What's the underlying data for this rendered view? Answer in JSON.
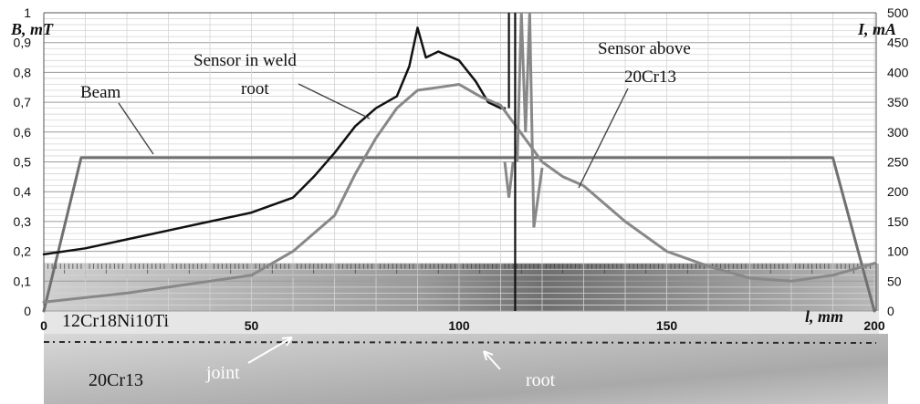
{
  "chart_data": {
    "type": "line",
    "y_left": {
      "label": "B, mT",
      "range": [
        0,
        1
      ],
      "ticks": [
        0,
        0.1,
        0.2,
        0.3,
        0.4,
        0.5,
        0.6,
        0.7,
        0.8,
        0.9,
        1
      ],
      "tick_labels": [
        "0",
        "0,1",
        "0,2",
        "0,3",
        "0,4",
        "0,5",
        "0,6",
        "0,7",
        "0,8",
        "0,9",
        "1"
      ]
    },
    "y_right": {
      "label": "I, mA",
      "range": [
        0,
        500
      ],
      "ticks": [
        0,
        50,
        100,
        150,
        200,
        250,
        300,
        350,
        400,
        450,
        500
      ],
      "tick_labels": [
        "0",
        "50",
        "100",
        "150",
        "200",
        "250",
        "300",
        "350",
        "400",
        "450",
        "500"
      ]
    },
    "x": {
      "label": "l, mm",
      "range": [
        0,
        200
      ],
      "ticks": [
        0,
        50,
        100,
        150,
        200
      ],
      "tick_labels": [
        "0",
        "50",
        "100",
        "150",
        "200"
      ]
    },
    "grid": true,
    "series": [
      {
        "name": "Beam",
        "axis": "right",
        "color": "#707070",
        "points": [
          [
            0,
            0
          ],
          [
            9,
            257
          ],
          [
            190,
            257
          ],
          [
            200,
            0
          ]
        ]
      },
      {
        "name": "Sensor in weld root",
        "axis": "left",
        "color": "#111111",
        "points": [
          [
            0,
            0.19
          ],
          [
            10,
            0.21
          ],
          [
            20,
            0.24
          ],
          [
            30,
            0.27
          ],
          [
            40,
            0.3
          ],
          [
            50,
            0.33
          ],
          [
            60,
            0.38
          ],
          [
            65,
            0.45
          ],
          [
            70,
            0.53
          ],
          [
            75,
            0.62
          ],
          [
            80,
            0.68
          ],
          [
            85,
            0.72
          ],
          [
            88,
            0.82
          ],
          [
            90,
            0.95
          ],
          [
            92,
            0.85
          ],
          [
            95,
            0.87
          ],
          [
            100,
            0.84
          ],
          [
            104,
            0.77
          ],
          [
            107,
            0.7
          ],
          [
            110,
            0.68
          ],
          [
            111,
            0.68
          ]
        ]
      },
      {
        "name": "Sensor above 20Cr13",
        "axis": "left",
        "color": "#888888",
        "points": [
          [
            0,
            0.03
          ],
          [
            20,
            0.06
          ],
          [
            40,
            0.1
          ],
          [
            50,
            0.12
          ],
          [
            60,
            0.2
          ],
          [
            70,
            0.32
          ],
          [
            75,
            0.46
          ],
          [
            80,
            0.58
          ],
          [
            85,
            0.68
          ],
          [
            90,
            0.74
          ],
          [
            95,
            0.75
          ],
          [
            100,
            0.76
          ],
          [
            105,
            0.72
          ],
          [
            110,
            0.69
          ],
          [
            120,
            0.5
          ],
          [
            125,
            0.45
          ],
          [
            130,
            0.42
          ],
          [
            140,
            0.3
          ],
          [
            150,
            0.2
          ],
          [
            160,
            0.15
          ],
          [
            170,
            0.11
          ],
          [
            180,
            0.1
          ],
          [
            190,
            0.12
          ],
          [
            200,
            0.16
          ]
        ]
      }
    ],
    "annotations": [
      {
        "text": "Beam"
      },
      {
        "text": "Sensor in weld"
      },
      {
        "text": "root"
      },
      {
        "text": "Sensor above"
      },
      {
        "text": "20Cr13"
      }
    ]
  },
  "plate": {
    "material_top": "12Cr18Ni10Ti",
    "material_bottom": "20Cr13",
    "label_joint": "joint",
    "label_root": "root"
  }
}
